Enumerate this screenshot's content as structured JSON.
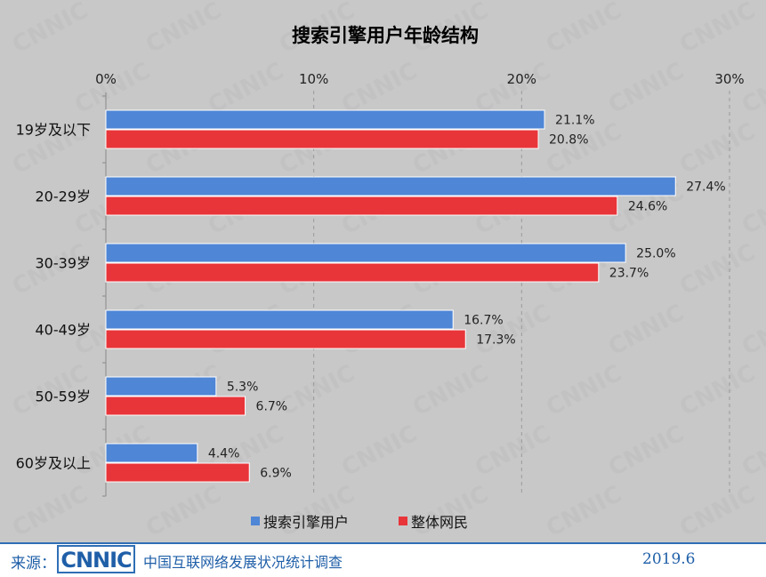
{
  "chart_data": {
    "type": "bar",
    "orientation": "horizontal",
    "title": "搜索引擎用户年龄结构",
    "categories": [
      "19岁及以下",
      "20-29岁",
      "30-39岁",
      "40-49岁",
      "50-59岁",
      "60岁及以上"
    ],
    "series": [
      {
        "name": "搜索引擎用户",
        "color": "#4f86d6",
        "values": [
          21.1,
          27.4,
          25.0,
          16.7,
          5.3,
          4.4
        ],
        "labels": [
          "21.1%",
          "27.4%",
          "25.0%",
          "16.7%",
          "5.3%",
          "4.4%"
        ]
      },
      {
        "name": "整体网民",
        "color": "#e8353a",
        "values": [
          20.8,
          24.6,
          23.7,
          17.3,
          6.7,
          6.9
        ],
        "labels": [
          "20.8%",
          "24.6%",
          "23.7%",
          "17.3%",
          "6.7%",
          "6.9%"
        ]
      }
    ],
    "xlim": [
      0,
      30
    ],
    "xticks": [
      0,
      10,
      20,
      30
    ],
    "xtick_labels": [
      "0%",
      "10%",
      "20%",
      "30%"
    ],
    "xaxis_position": "top",
    "grid": "vertical-dashed",
    "legend_position": "bottom",
    "watermark": "CNNIC",
    "background": "#c8c8c8"
  },
  "footer": {
    "source_label": "来源：",
    "logo_text": "CNNIC",
    "survey_title": "中国互联网络发展状况统计调查",
    "date": "2019.6"
  }
}
